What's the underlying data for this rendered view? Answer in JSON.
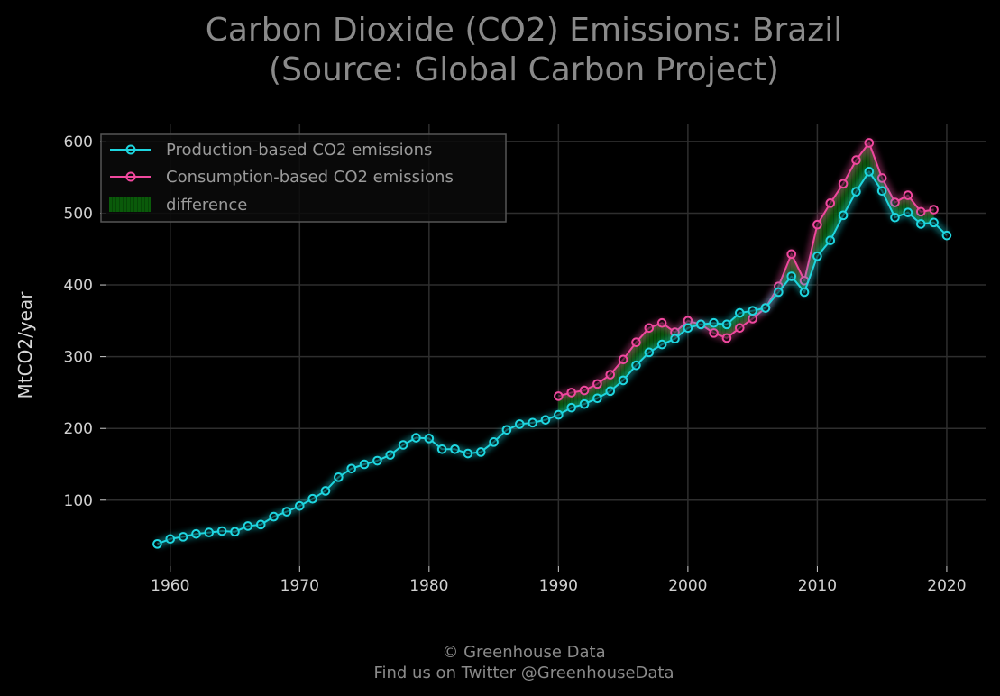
{
  "chart_data": {
    "type": "line",
    "title": [
      "Carbon Dioxide (CO2) Emissions: Brazil",
      "(Source: Global Carbon Project)"
    ],
    "ylabel": "MtCO2/year",
    "xlabel": "",
    "xlim": [
      1955,
      2023
    ],
    "ylim": [
      8,
      625
    ],
    "xticks": [
      1960,
      1970,
      1980,
      1990,
      2000,
      2010,
      2020
    ],
    "yticks": [
      100,
      200,
      300,
      400,
      500,
      600
    ],
    "grid": true,
    "legend_position": "top-left",
    "series": [
      {
        "name": "Production-based CO2 emissions",
        "color": "#1ed6e0",
        "x": [
          1959,
          1960,
          1961,
          1962,
          1963,
          1964,
          1965,
          1966,
          1967,
          1968,
          1969,
          1970,
          1971,
          1972,
          1973,
          1974,
          1975,
          1976,
          1977,
          1978,
          1979,
          1980,
          1981,
          1982,
          1983,
          1984,
          1985,
          1986,
          1987,
          1988,
          1989,
          1990,
          1991,
          1992,
          1993,
          1994,
          1995,
          1996,
          1997,
          1998,
          1999,
          2000,
          2001,
          2002,
          2003,
          2004,
          2005,
          2006,
          2007,
          2008,
          2009,
          2010,
          2011,
          2012,
          2013,
          2014,
          2015,
          2016,
          2017,
          2018,
          2019,
          2020
        ],
        "y": [
          39,
          46,
          49,
          53,
          55,
          57,
          56,
          64,
          66,
          77,
          84,
          92,
          102,
          113,
          132,
          144,
          150,
          155,
          163,
          177,
          187,
          186,
          171,
          171,
          165,
          167,
          181,
          198,
          206,
          208,
          212,
          219,
          229,
          234,
          242,
          252,
          267,
          288,
          306,
          317,
          325,
          340,
          345,
          347,
          345,
          361,
          364,
          368,
          390,
          412,
          390,
          440,
          462,
          497,
          530,
          558,
          531,
          494,
          501,
          485,
          487,
          469
        ]
      },
      {
        "name": "Consumption-based CO2 emissions",
        "color": "#f0489e",
        "x": [
          1990,
          1991,
          1992,
          1993,
          1994,
          1995,
          1996,
          1997,
          1998,
          1999,
          2000,
          2001,
          2002,
          2003,
          2004,
          2005,
          2006,
          2007,
          2008,
          2009,
          2010,
          2011,
          2012,
          2013,
          2014,
          2015,
          2016,
          2017,
          2018,
          2019
        ],
        "y": [
          245,
          250,
          253,
          262,
          275,
          296,
          320,
          340,
          347,
          334,
          350,
          345,
          333,
          326,
          340,
          353,
          368,
          398,
          443,
          406,
          484,
          514,
          541,
          574,
          598,
          549,
          515,
          525,
          502,
          505
        ]
      }
    ],
    "fill_between": {
      "name": "difference",
      "color": "#0a7a0a"
    }
  },
  "credit": {
    "line1": "© Greenhouse Data",
    "line2": "Find us on Twitter @GreenhouseData"
  }
}
